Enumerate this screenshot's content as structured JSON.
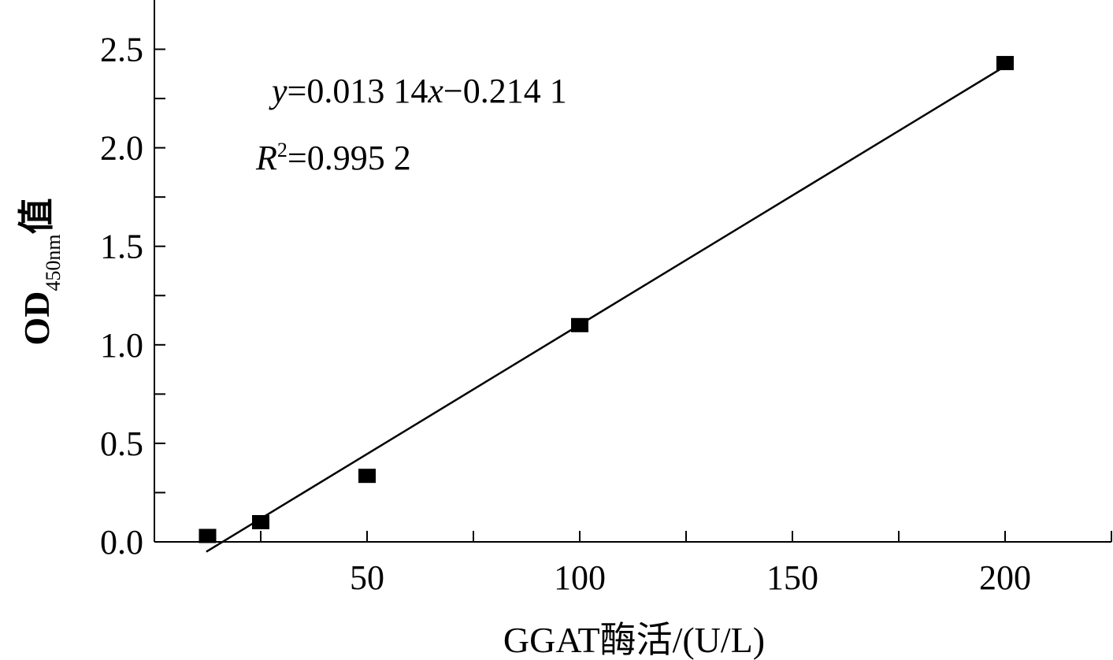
{
  "chart_data": {
    "type": "scatter",
    "x_label": "GGAT酶活/(U/L)",
    "y_label": {
      "parts": [
        "OD",
        "450nm",
        "值"
      ]
    },
    "annotations": [
      {
        "parts": [
          "y",
          "=0.013 14",
          "x",
          "−0.214 1"
        ]
      },
      {
        "parts": [
          "R",
          "2",
          "=0.995 2"
        ]
      }
    ],
    "xlim": [
      0,
      225
    ],
    "ylim": [
      0,
      2.75
    ],
    "xticks": [
      50,
      100,
      150,
      200
    ],
    "xminor": [
      25,
      75,
      125,
      175,
      225
    ],
    "yticks": [
      {
        "value": 0,
        "label": "0.0"
      },
      0.5,
      {
        "value": 1,
        "label": "1.0"
      },
      1.5,
      {
        "value": 2,
        "label": "2.0"
      },
      2.5
    ],
    "yminor": [
      0.25,
      0.75,
      1.25,
      1.75,
      2.25
    ],
    "series": [
      {
        "color": "#000000",
        "x": [
          12.5,
          25,
          50,
          100,
          200
        ],
        "values": [
          0.03,
          0.1,
          0.335,
          1.1,
          2.43
        ]
      }
    ],
    "fit_line": {
      "color": "#000000",
      "x": [
        12.2,
        200
      ],
      "values": [
        -0.05,
        2.414
      ]
    }
  }
}
